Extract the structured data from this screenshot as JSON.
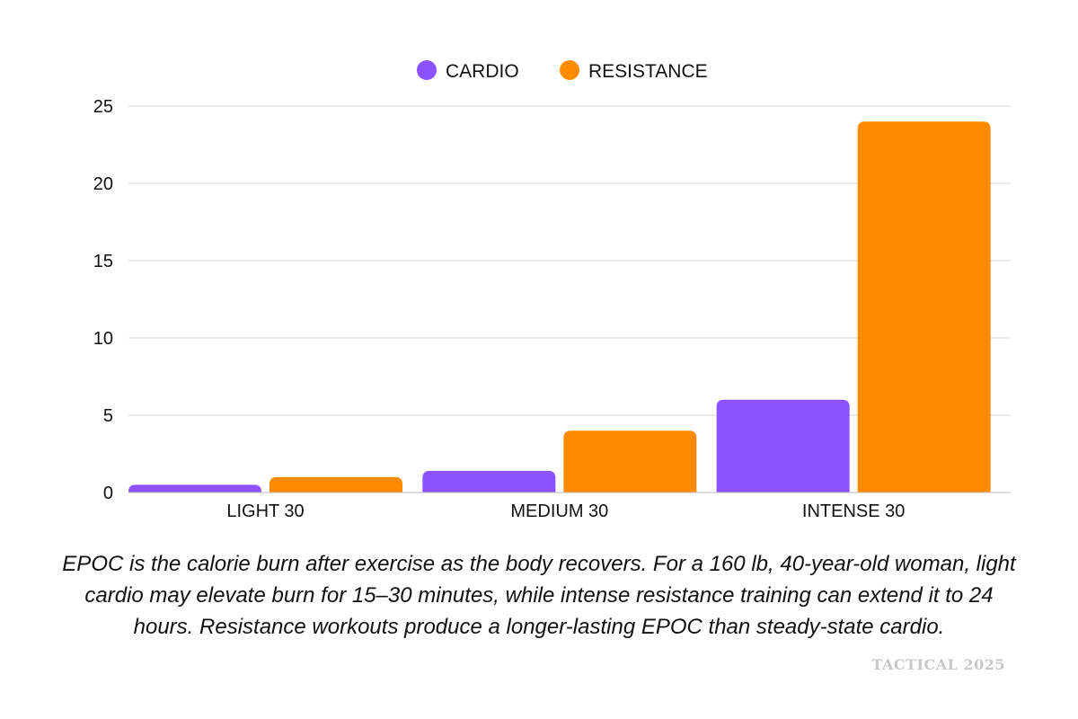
{
  "chart_data": {
    "type": "bar",
    "categories": [
      "LIGHT 30",
      "MEDIUM 30",
      "INTENSE 30"
    ],
    "series": [
      {
        "name": "CARDIO",
        "values": [
          0.5,
          1.4,
          6
        ],
        "color": "#8c52ff"
      },
      {
        "name": "RESISTANCE",
        "values": [
          1,
          4,
          24
        ],
        "color": "#ff8c00"
      }
    ],
    "ylim": [
      0,
      25
    ],
    "yticks": [
      0,
      5,
      10,
      15,
      20,
      25
    ],
    "grid": true,
    "legend_position": "top-center"
  },
  "caption": "EPOC is the calorie burn after exercise as the body recovers. For a 160 lb, 40-year-old woman, light cardio may elevate burn for 15–30 minutes, while intense resistance training can extend it to 24 hours. Resistance workouts produce a longer-lasting EPOC than steady-state cardio.",
  "watermark": "TACTICAL 2025"
}
